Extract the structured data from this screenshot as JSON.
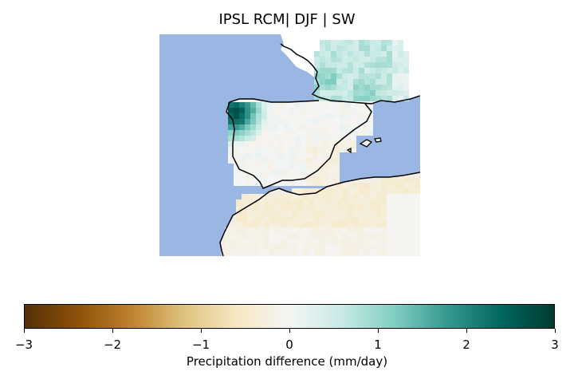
{
  "map": {
    "title": "IPSL RCM| DJF | SW",
    "projection": "plate-carree",
    "ocean_color": "#9ab7e3",
    "land_outline_color": "#000000",
    "colormap": "BrBG",
    "regions": [
      {
        "name": "Bay of Biscay / NW France",
        "anomaly": 0.6
      },
      {
        "name": "Galicia (NW Iberia)",
        "anomaly": 2.6
      },
      {
        "name": "Central Iberia",
        "anomaly": 0.1
      },
      {
        "name": "SE Iberia",
        "anomaly": -0.3
      },
      {
        "name": "North Africa",
        "anomaly": -0.4
      }
    ]
  },
  "colorbar": {
    "min": -3,
    "max": 3,
    "ticks": [
      "−3",
      "−2",
      "−1",
      "0",
      "1",
      "2",
      "3"
    ],
    "label": "Precipitation difference (mm/day)",
    "colors": [
      "#543005",
      "#8c510a",
      "#bf812d",
      "#dfc27d",
      "#f6e8c3",
      "#f5f5f5",
      "#c7eae5",
      "#80cdc1",
      "#35978f",
      "#01665e",
      "#003c30"
    ]
  }
}
